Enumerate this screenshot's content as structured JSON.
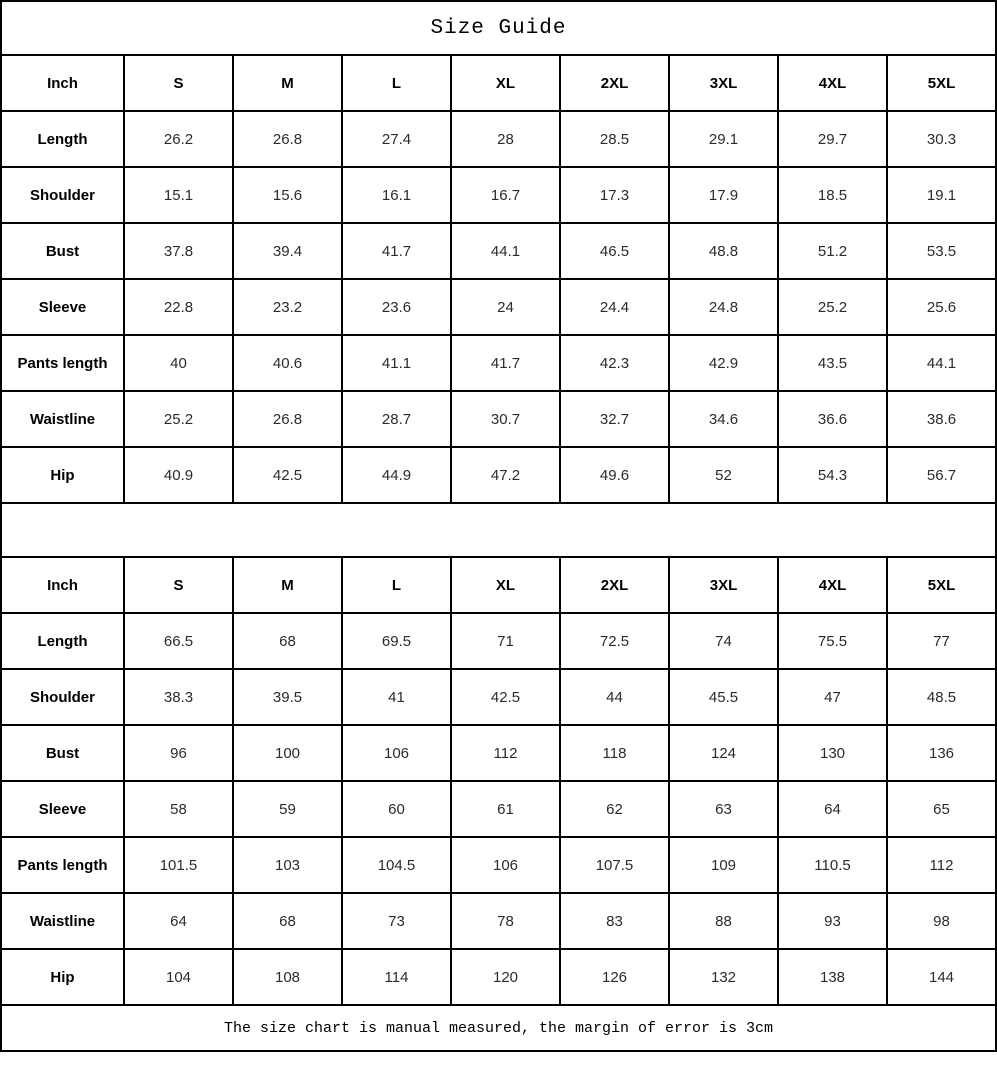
{
  "title": "Size Guide",
  "footer_note": "The size chart is manual measured, the margin of error is 3cm",
  "size_headers": [
    "Inch",
    "S",
    "M",
    "L",
    "XL",
    "2XL",
    "3XL",
    "4XL",
    "5XL"
  ],
  "tables": [
    {
      "name": "upper-size-table",
      "rows": [
        {
          "label": "Length",
          "values": [
            "26.2",
            "26.8",
            "27.4",
            "28",
            "28.5",
            "29.1",
            "29.7",
            "30.3"
          ]
        },
        {
          "label": "Shoulder",
          "values": [
            "15.1",
            "15.6",
            "16.1",
            "16.7",
            "17.3",
            "17.9",
            "18.5",
            "19.1"
          ]
        },
        {
          "label": "Bust",
          "values": [
            "37.8",
            "39.4",
            "41.7",
            "44.1",
            "46.5",
            "48.8",
            "51.2",
            "53.5"
          ]
        },
        {
          "label": "Sleeve",
          "values": [
            "22.8",
            "23.2",
            "23.6",
            "24",
            "24.4",
            "24.8",
            "25.2",
            "25.6"
          ]
        },
        {
          "label": "Pants length",
          "values": [
            "40",
            "40.6",
            "41.1",
            "41.7",
            "42.3",
            "42.9",
            "43.5",
            "44.1"
          ]
        },
        {
          "label": "Waistline",
          "values": [
            "25.2",
            "26.8",
            "28.7",
            "30.7",
            "32.7",
            "34.6",
            "36.6",
            "38.6"
          ]
        },
        {
          "label": "Hip",
          "values": [
            "40.9",
            "42.5",
            "44.9",
            "47.2",
            "49.6",
            "52",
            "54.3",
            "56.7"
          ]
        }
      ]
    },
    {
      "name": "lower-size-table",
      "rows": [
        {
          "label": "Length",
          "values": [
            "66.5",
            "68",
            "69.5",
            "71",
            "72.5",
            "74",
            "75.5",
            "77"
          ]
        },
        {
          "label": "Shoulder",
          "values": [
            "38.3",
            "39.5",
            "41",
            "42.5",
            "44",
            "45.5",
            "47",
            "48.5"
          ]
        },
        {
          "label": "Bust",
          "values": [
            "96",
            "100",
            "106",
            "112",
            "118",
            "124",
            "130",
            "136"
          ]
        },
        {
          "label": "Sleeve",
          "values": [
            "58",
            "59",
            "60",
            "61",
            "62",
            "63",
            "64",
            "65"
          ]
        },
        {
          "label": "Pants length",
          "values": [
            "101.5",
            "103",
            "104.5",
            "106",
            "107.5",
            "109",
            "110.5",
            "112"
          ]
        },
        {
          "label": "Waistline",
          "values": [
            "64",
            "68",
            "73",
            "78",
            "83",
            "88",
            "93",
            "98"
          ]
        },
        {
          "label": "Hip",
          "values": [
            "104",
            "108",
            "114",
            "120",
            "126",
            "132",
            "138",
            "144"
          ]
        }
      ]
    }
  ],
  "colors": {
    "border": "#000000",
    "text": "#000000",
    "background": "#ffffff"
  }
}
